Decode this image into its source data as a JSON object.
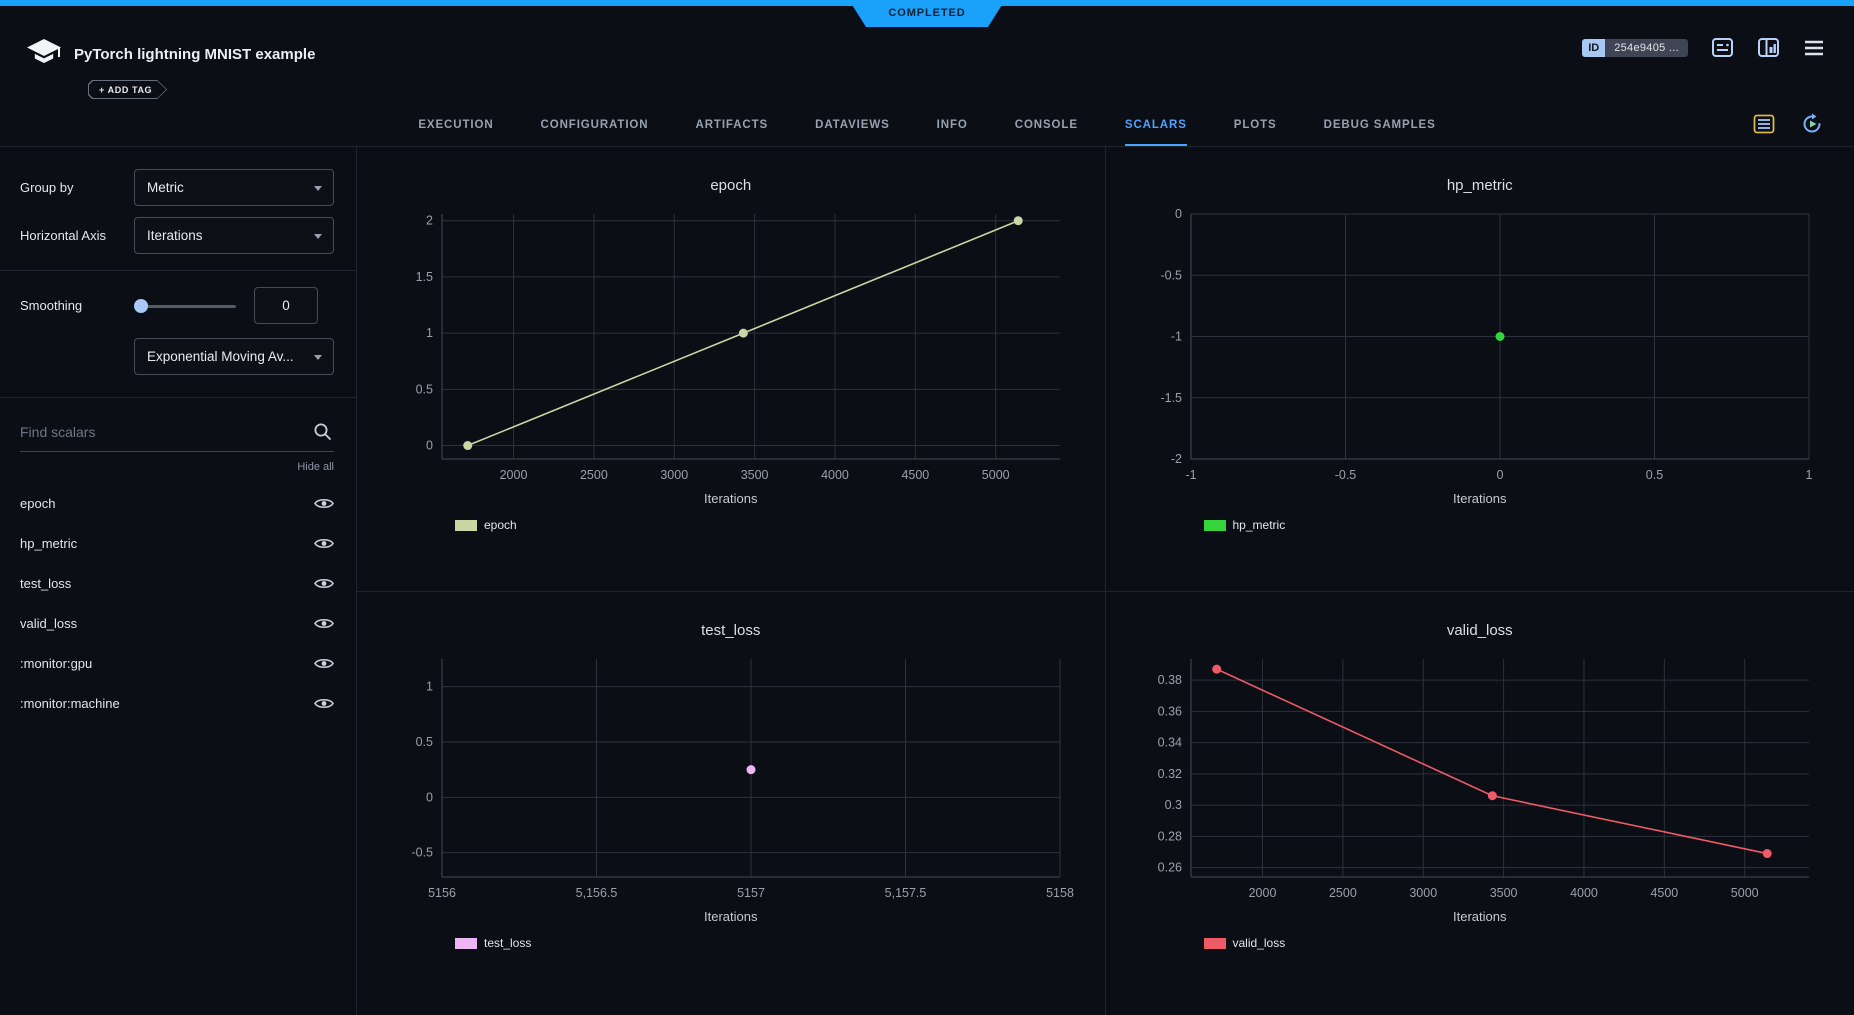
{
  "colors": {
    "accent_blue": "#1aa1f9",
    "tab_active_blue": "#4da3ff",
    "chart_grid": "#2c313b",
    "chart_tick": "#9aa0ab",
    "chart_spine": "#454b57",
    "epoch_series": "#ccd5a4",
    "hp_metric_series": "#35d43a",
    "test_loss_series": "#ecb5f3",
    "valid_loss_series": "#ef5a67"
  },
  "ribbon": {
    "status": "COMPLETED"
  },
  "header": {
    "title": "PyTorch lightning MNIST example",
    "add_tag_label": "+ ADD TAG",
    "id_label": "ID",
    "id_value": "254e9405 ...",
    "icons": [
      "comment-icon",
      "split-view-icon",
      "menu-icon"
    ]
  },
  "tabs": {
    "items": [
      {
        "label": "EXECUTION",
        "active": false
      },
      {
        "label": "CONFIGURATION",
        "active": false
      },
      {
        "label": "ARTIFACTS",
        "active": false
      },
      {
        "label": "DATAVIEWS",
        "active": false
      },
      {
        "label": "INFO",
        "active": false
      },
      {
        "label": "CONSOLE",
        "active": false
      },
      {
        "label": "SCALARS",
        "active": true
      },
      {
        "label": "PLOTS",
        "active": false
      },
      {
        "label": "DEBUG SAMPLES",
        "active": false
      }
    ],
    "right_icons": [
      "metrics-table-icon",
      "auto-refresh-icon"
    ]
  },
  "sidebar": {
    "group_by_label": "Group by",
    "group_by_value": "Metric",
    "horizontal_axis_label": "Horizontal Axis",
    "horizontal_axis_value": "Iterations",
    "smoothing_label": "Smoothing",
    "smoothing_value": "0",
    "smoothing_type_value": "Exponential Moving Av...",
    "search_placeholder": "Find scalars",
    "hide_all_label": "Hide all",
    "metrics": [
      "epoch",
      "hp_metric",
      "test_loss",
      "valid_loss",
      ":monitor:gpu",
      ":monitor:machine"
    ]
  },
  "chart_data": [
    {
      "type": "line",
      "title": "epoch",
      "xlabel": "Iterations",
      "xlim": [
        1555,
        5400
      ],
      "ylim": [
        -0.12,
        2.06
      ],
      "xticks": [
        2000,
        2500,
        3000,
        3500,
        4000,
        4500,
        5000
      ],
      "xtick_labels": [
        "2000",
        "2500",
        "3000",
        "3500",
        "4000",
        "4500",
        "5000"
      ],
      "yticks": [
        0,
        0.5,
        1,
        1.5,
        2
      ],
      "ytick_labels": [
        "0",
        "0.5",
        "1",
        "1.5",
        "2"
      ],
      "series": [
        {
          "name": "epoch",
          "color": "#ccd5a4",
          "x": [
            1715,
            3430,
            5140
          ],
          "y": [
            0,
            1,
            2
          ]
        }
      ]
    },
    {
      "type": "scatter",
      "title": "hp_metric",
      "xlabel": "Iterations",
      "xlim": [
        -1,
        1
      ],
      "ylim": [
        -2,
        0
      ],
      "xticks": [
        -1,
        -0.5,
        0,
        0.5,
        1
      ],
      "xtick_labels": [
        "-1",
        "-0.5",
        "0",
        "0.5",
        "1"
      ],
      "yticks": [
        0,
        -0.5,
        -1,
        -1.5,
        -2
      ],
      "ytick_labels": [
        "0",
        "-0.5",
        "-1",
        "-1.5",
        "-2"
      ],
      "series": [
        {
          "name": "hp_metric",
          "color": "#35d43a",
          "x": [
            0
          ],
          "y": [
            -1
          ]
        }
      ]
    },
    {
      "type": "scatter",
      "title": "test_loss",
      "xlabel": "Iterations",
      "xlim": [
        5156,
        5158
      ],
      "ylim": [
        -0.72,
        1.25
      ],
      "xticks": [
        5156,
        5156.5,
        5157,
        5157.5,
        5158
      ],
      "xtick_labels": [
        "5156",
        "5,156.5",
        "5157",
        "5,157.5",
        "5158"
      ],
      "yticks": [
        1,
        0.5,
        0,
        -0.5
      ],
      "ytick_labels": [
        "1",
        "0.5",
        "0",
        "-0.5"
      ],
      "series": [
        {
          "name": "test_loss",
          "color": "#ecb5f3",
          "x": [
            5157
          ],
          "y": [
            0.25
          ]
        }
      ]
    },
    {
      "type": "line",
      "title": "valid_loss",
      "xlabel": "Iterations",
      "xlim": [
        1555,
        5400
      ],
      "ylim": [
        0.254,
        0.3935
      ],
      "xticks": [
        2000,
        2500,
        3000,
        3500,
        4000,
        4500,
        5000
      ],
      "xtick_labels": [
        "2000",
        "2500",
        "3000",
        "3500",
        "4000",
        "4500",
        "5000"
      ],
      "yticks": [
        0.38,
        0.36,
        0.34,
        0.32,
        0.3,
        0.28,
        0.26
      ],
      "ytick_labels": [
        "0.38",
        "0.36",
        "0.34",
        "0.32",
        "0.3",
        "0.28",
        "0.26"
      ],
      "series": [
        {
          "name": "valid_loss",
          "color": "#ef5a67",
          "x": [
            1715,
            3430,
            5140
          ],
          "y": [
            0.387,
            0.306,
            0.269
          ]
        }
      ]
    }
  ]
}
